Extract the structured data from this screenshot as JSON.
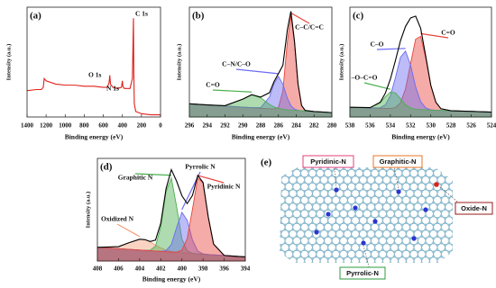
{
  "chart_data": [
    {
      "type": "line",
      "panel": "(a)",
      "x_label": "Binding energy (eV)",
      "y_label": "Intensity (a.u.)",
      "xlim": [
        1400,
        0
      ],
      "ylim": [
        0,
        100
      ],
      "xticks": [
        1400,
        1200,
        1000,
        800,
        600,
        400,
        200,
        0
      ],
      "x": [
        1400,
        1300,
        1250,
        1230,
        1220,
        1200,
        1100,
        1000,
        900,
        800,
        700,
        600,
        560,
        540,
        532,
        525,
        500,
        450,
        410,
        400,
        395,
        380,
        320,
        295,
        288,
        284,
        280,
        275,
        260,
        200,
        100,
        0
      ],
      "series": [
        {
          "color": "#e0201b",
          "values": [
            24,
            25,
            25,
            27,
            35,
            33,
            30,
            29,
            29,
            28,
            28,
            27,
            27,
            31,
            38,
            30,
            27,
            26,
            27,
            33,
            28,
            26,
            26,
            35,
            70,
            90,
            40,
            12,
            5,
            3,
            2,
            2
          ]
        }
      ],
      "annotations": [
        "C 1s",
        "O 1s",
        "N 1s"
      ]
    },
    {
      "type": "line",
      "panel": "(b)",
      "x_label": "Binding energy (eV)",
      "y_label": "Intensity (a.u.)",
      "xlim": [
        296,
        280
      ],
      "ylim": [
        0,
        100
      ],
      "xticks": [
        296,
        294,
        292,
        290,
        288,
        286,
        284,
        282,
        280
      ],
      "x": [
        296,
        294,
        292,
        290,
        289,
        288,
        287,
        286.5,
        286,
        285.5,
        285,
        284.6,
        284.2,
        283.8,
        283.4,
        283,
        282,
        281,
        280
      ],
      "series": [
        {
          "name": "C–C/C=C",
          "color": "#e8453c",
          "fill": true,
          "values": [
            12,
            11,
            10,
            9,
            8.5,
            8,
            7.5,
            7.3,
            8.7,
            23.8,
            68.5,
            92.3,
            68.1,
            29.9,
            10.5,
            6,
            5,
            4.5,
            4
          ]
        },
        {
          "name": "C–N/C–O",
          "color": "#6b6bf2",
          "fill": true,
          "values": [
            12,
            11,
            10,
            9,
            8.5,
            8.5,
            18.3,
            30.3,
            37,
            29.8,
            17.3,
            10.3,
            7.2,
            6.1,
            5.7,
            5.5,
            5,
            4.5,
            4
          ]
        },
        {
          "name": "C=O",
          "color": "#4caf50",
          "fill": true,
          "values": [
            12,
            11,
            10.3,
            16.3,
            20.3,
            17.6,
            11.4,
            9.2,
            7.8,
            7.1,
            6.5,
            6.3,
            6.1,
            5.9,
            5.7,
            5.5,
            5,
            4.5,
            4
          ]
        },
        {
          "color": "#000000",
          "fill": false,
          "values": [
            12,
            11,
            10.3,
            16.3,
            20.3,
            18.1,
            22.2,
            32.2,
            39.5,
            47.1,
            79.3,
            96.3,
            69.2,
            30.1,
            10.5,
            6,
            5,
            4.5,
            4
          ]
        }
      ]
    },
    {
      "type": "line",
      "panel": "(c)",
      "x_label": "Binding energy (eV)",
      "y_label": "Intensity (a.u.)",
      "xlim": [
        538,
        524
      ],
      "ylim": [
        0,
        90
      ],
      "xticks": [
        538,
        536,
        534,
        532,
        530,
        528,
        526,
        524
      ],
      "x": [
        538,
        536,
        535,
        534.5,
        534,
        533.5,
        533,
        532.5,
        532,
        531.5,
        531,
        530.5,
        530,
        529.5,
        529,
        528,
        526,
        524
      ],
      "series": [
        {
          "name": "C=O",
          "color": "#e8453c",
          "fill": true,
          "values": [
            8,
            7.4,
            7.1,
            7.0,
            7.0,
            7.7,
            11.6,
            23,
            43.9,
            63.8,
            66.1,
            48.2,
            25.8,
            12.1,
            6.8,
            5.1,
            4.6,
            4
          ]
        },
        {
          "name": "C–O",
          "color": "#6b6bf2",
          "fill": true,
          "values": [
            8,
            7.4,
            7.6,
            9.9,
            17.3,
            32.2,
            49,
            54,
            42.5,
            24.8,
            12.5,
            7.4,
            5.9,
            5.6,
            5.4,
            5.1,
            4.6,
            4
          ]
        },
        {
          "name": "–O–C=O",
          "color": "#4caf50",
          "fill": true,
          "values": [
            8,
            7.7,
            11.6,
            16.5,
            20.5,
            19.7,
            15.1,
            10.1,
            7.4,
            6.3,
            6,
            5.9,
            5.7,
            5.6,
            5.4,
            5.1,
            4.6,
            4
          ]
        },
        {
          "color": "#000000",
          "fill": false,
          "values": [
            8,
            7.7,
            12.1,
            19.4,
            31,
            46.2,
            62.5,
            74.3,
            81.2,
            82.7,
            72.6,
            49.7,
            26,
            12.1,
            6.8,
            5.1,
            4.6,
            4
          ]
        }
      ]
    },
    {
      "type": "line",
      "panel": "(d)",
      "x_label": "Binding energy (eV)",
      "y_label": "Intensity (a.u.)",
      "xlim": [
        408,
        394
      ],
      "ylim": [
        0,
        75
      ],
      "xticks": [
        408,
        406,
        404,
        402,
        400,
        398,
        396,
        394
      ],
      "x": [
        408,
        406,
        405,
        404,
        403.5,
        403,
        402.5,
        402,
        401.5,
        401,
        400.5,
        400,
        399.5,
        399,
        398.5,
        398,
        397.5,
        397,
        396,
        395,
        394
      ],
      "series": [
        {
          "name": "Oxidized N",
          "color": "#f2a07b",
          "fill": true,
          "values": [
            10,
            10.5,
            13.4,
            15.9,
            15.6,
            13.9,
            11.7,
            9.6,
            8.1,
            7,
            6.5,
            6,
            5.75,
            5.5,
            5.25,
            5,
            4.75,
            4.5,
            4,
            3.5,
            3
          ]
        },
        {
          "name": "Graphitic N",
          "color": "#4caf50",
          "fill": true,
          "values": [
            10,
            9,
            8.5,
            8,
            7.75,
            7.9,
            10.9,
            24.9,
            50.8,
            60.7,
            39.7,
            16.2,
            7.4,
            5.6,
            5.25,
            5,
            4.75,
            4.5,
            4,
            3.5,
            3
          ]
        },
        {
          "name": "Pyrrolic N",
          "color": "#6b6bf2",
          "fill": true,
          "values": [
            10,
            9,
            8.5,
            8,
            7.75,
            7.5,
            7.25,
            7.1,
            7.55,
            12.1,
            24.5,
            35.6,
            29.8,
            15.3,
            7.3,
            5.2,
            4.75,
            4.5,
            4,
            3.5,
            3
          ]
        },
        {
          "name": "Pyridinic N",
          "color": "#e8453c",
          "fill": true,
          "values": [
            10,
            9,
            8.5,
            8,
            7.75,
            7.5,
            7.25,
            7,
            6.75,
            6.5,
            6.45,
            7.9,
            16.35,
            38,
            60.55,
            57.2,
            31.95,
            12.3,
            4.1,
            3.5,
            3
          ]
        },
        {
          "color": "#000000",
          "fill": false,
          "values": [
            10,
            10.5,
            13.4,
            15.9,
            15.6,
            14.3,
            15.3,
            27.6,
            52.9,
            66.8,
            58.3,
            47.7,
            42,
            47.9,
            62.6,
            57.4,
            31.95,
            12.3,
            4.1,
            3.5,
            3
          ]
        }
      ]
    }
  ],
  "diagram": {
    "panel": "(e)",
    "labels": [
      "Pyridinic-N",
      "Graphitic-N",
      "Oxide-N",
      "Pyrrolic-N"
    ]
  }
}
